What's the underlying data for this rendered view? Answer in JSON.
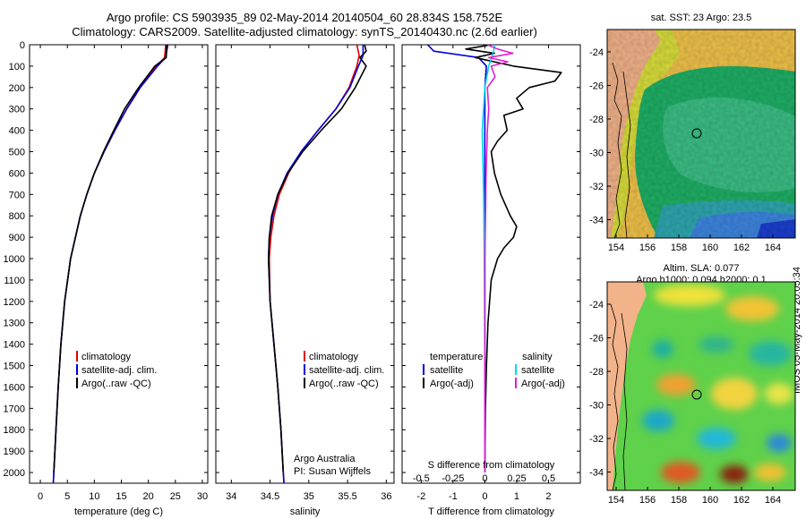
{
  "header": {
    "line1": "Argo profile: CS 5903935_89 02-May-2014 20140504_60 28.834S 158.752E",
    "line2": "Climatology: CARS2009. Satellite-adjusted climatology: synTS_20140430.nc (2.6d earlier)"
  },
  "maps": {
    "sst_title": "sat. SST: 23 Argo: 23.5",
    "sla_title1": "Altim. SLA: 0.077",
    "sla_title2": "Argo h1000: 0.094 h2000: 0.1",
    "lat_ticks": [
      "-24",
      "-26",
      "-28",
      "-30",
      "-32",
      "-34"
    ],
    "lon_ticks": [
      "154",
      "156",
      "158",
      "160",
      "162",
      "164"
    ],
    "float_marker": "circle"
  },
  "side_stamp": "IMOS 05-May-2014 20:05:34",
  "colors": {
    "climatology": "#dd0000",
    "satellite": "#0000dd",
    "argo": "#000000",
    "sat_salinity": "#00d8e8",
    "argo_salinity": "#e020d0"
  },
  "chart_data": [
    {
      "type": "line",
      "name": "temperature",
      "xlabel": "temperature (deg C)",
      "ylabel": "",
      "xlim": [
        -2,
        31
      ],
      "ylim": [
        2050,
        0
      ],
      "xticks": [
        0,
        5,
        10,
        15,
        20,
        25,
        30
      ],
      "yticks": [
        0,
        100,
        200,
        300,
        400,
        500,
        600,
        700,
        800,
        900,
        1000,
        1100,
        1200,
        1300,
        1400,
        1500,
        1600,
        1700,
        1800,
        1900,
        2000
      ],
      "legend": [
        "climatology",
        "satellite-adj. clim.",
        "Argo(..raw -QC)"
      ],
      "legend_loc": "lower-center",
      "series": [
        {
          "name": "climatology",
          "depth": [
            0,
            60,
            100,
            200,
            300,
            400,
            500,
            600,
            700,
            800,
            1000,
            1200,
            1400,
            1600,
            1800,
            2000,
            2050
          ],
          "values": [
            23.2,
            23.0,
            21.5,
            18.5,
            16.0,
            13.8,
            11.8,
            10.0,
            8.6,
            7.4,
            5.6,
            4.5,
            3.8,
            3.3,
            2.9,
            2.5,
            2.4
          ]
        },
        {
          "name": "satellite-adj. clim.",
          "depth": [
            0,
            60,
            100,
            200,
            300,
            400,
            500,
            600,
            700,
            800,
            1000,
            1200,
            1400,
            1600,
            1800,
            2000,
            2050
          ],
          "values": [
            23.6,
            23.2,
            21.7,
            18.5,
            16.0,
            13.8,
            11.8,
            10.0,
            8.6,
            7.4,
            5.6,
            4.5,
            3.8,
            3.3,
            2.9,
            2.5,
            2.4
          ]
        },
        {
          "name": "Argo(..raw -QC)",
          "depth": [
            0,
            60,
            100,
            200,
            300,
            400,
            500,
            600,
            700,
            800,
            1000,
            1200,
            1400,
            1600,
            1800,
            2000
          ],
          "values": [
            23.4,
            23.3,
            21.2,
            18.2,
            15.6,
            13.6,
            11.7,
            10.0,
            8.6,
            7.4,
            5.6,
            4.5,
            3.8,
            3.3,
            2.9,
            2.5
          ]
        }
      ]
    },
    {
      "type": "line",
      "name": "salinity",
      "xlabel": "salinity",
      "ylabel": "",
      "xlim": [
        33.8,
        36.1
      ],
      "ylim": [
        2050,
        0
      ],
      "xticks": [
        34,
        34.5,
        35,
        35.5,
        36
      ],
      "legend": [
        "climatology",
        "satellite-adj. clim.",
        "Argo(..raw -QC)"
      ],
      "legend_loc": "lower-right",
      "annotations": [
        "Argo Australia",
        "PI: Susan Wijffels"
      ],
      "series": [
        {
          "name": "climatology",
          "depth": [
            0,
            50,
            100,
            200,
            300,
            400,
            500,
            600,
            700,
            800,
            900,
            1000,
            1200,
            1400,
            1600,
            1800,
            2000,
            2050
          ],
          "values": [
            35.62,
            35.65,
            35.62,
            35.52,
            35.35,
            35.12,
            34.9,
            34.74,
            34.62,
            34.55,
            34.51,
            34.49,
            34.5,
            34.55,
            34.6,
            34.64,
            34.67,
            34.68
          ]
        },
        {
          "name": "satellite-adj. clim.",
          "depth": [
            0,
            50,
            100,
            200,
            300,
            400,
            500,
            600,
            700,
            800,
            900,
            1000,
            1200,
            1400,
            1600,
            1800,
            2000,
            2050
          ],
          "values": [
            35.7,
            35.7,
            35.64,
            35.53,
            35.35,
            35.12,
            34.9,
            34.72,
            34.6,
            34.53,
            34.49,
            34.48,
            34.5,
            34.55,
            34.6,
            34.64,
            34.67,
            34.68
          ]
        },
        {
          "name": "Argo(..raw -QC)",
          "depth": [
            0,
            30,
            60,
            100,
            200,
            300,
            400,
            500,
            600,
            700,
            800,
            900,
            1000,
            1200,
            1400,
            1600,
            1800,
            2000
          ],
          "values": [
            35.72,
            35.74,
            35.66,
            35.74,
            35.6,
            35.42,
            35.16,
            34.92,
            34.73,
            34.6,
            34.52,
            34.49,
            34.48,
            34.5,
            34.55,
            34.6,
            34.64,
            34.67
          ]
        }
      ]
    },
    {
      "type": "line",
      "name": "difference",
      "xlabel": "T difference from climatology",
      "top_axis_label": "S difference from climatology",
      "xlim": [
        -2.6,
        3.0
      ],
      "ylim": [
        2050,
        0
      ],
      "xticks": [
        -2,
        -1,
        0,
        1,
        2
      ],
      "xticks_top": [
        "-0.5",
        "-0.25",
        "0",
        "0.25",
        "0.5"
      ],
      "legend_groups": [
        "temperature",
        "salinity"
      ],
      "legend": [
        "satellite",
        "Argo(-adj)",
        "satellite",
        "Argo(-adj)"
      ],
      "legend_loc": "lower-center",
      "series": [
        {
          "name": "temperature satellite",
          "depth": [
            0,
            30,
            60,
            100,
            200,
            400,
            700,
            1000,
            1500,
            2000
          ],
          "values": [
            -1.8,
            -1.6,
            -0.2,
            0.05,
            0.0,
            0.0,
            0.0,
            0.0,
            0.0,
            0.0
          ]
        },
        {
          "name": "temperature Argo(-adj)",
          "depth": [
            0,
            20,
            40,
            60,
            80,
            100,
            130,
            170,
            200,
            250,
            300,
            330,
            400,
            450,
            500,
            600,
            700,
            800,
            850,
            900,
            950,
            1000,
            1100,
            1300,
            1500,
            1700,
            2000
          ],
          "values": [
            0.2,
            -0.6,
            0.3,
            -0.3,
            0.3,
            0.9,
            2.4,
            2.2,
            1.4,
            1.0,
            1.2,
            0.6,
            0.7,
            0.4,
            0.2,
            0.3,
            0.5,
            0.8,
            1.0,
            0.9,
            0.6,
            0.4,
            0.2,
            0.1,
            0.05,
            0.02,
            0.0
          ]
        },
        {
          "name": "salinity satellite",
          "depth": [
            0,
            50,
            100,
            200,
            400,
            700,
            1000,
            1500,
            2000
          ],
          "values": [
            0.08,
            0.06,
            0.03,
            0.0,
            -0.02,
            -0.01,
            -0.005,
            0.0,
            0.0
          ]
        },
        {
          "name": "salinity Argo(-adj)",
          "depth": [
            0,
            20,
            40,
            60,
            80,
            100,
            150,
            200,
            300,
            400,
            600,
            800,
            1000,
            1500,
            2000
          ],
          "values": [
            0.02,
            0.1,
            0.22,
            0.03,
            0.18,
            0.05,
            0.08,
            0.02,
            0.03,
            0.02,
            0.01,
            0.005,
            0.0,
            0.0,
            0.0
          ]
        }
      ]
    }
  ]
}
